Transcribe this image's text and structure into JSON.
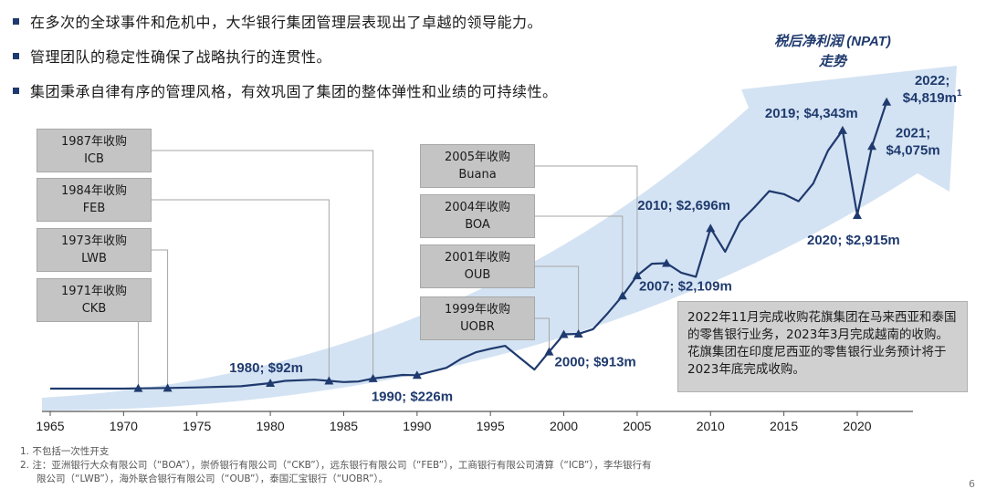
{
  "bullets": [
    "在多次的全球事件和危机中，大华银行集团管理层表现出了卓越的领导能力。",
    "管理团队的稳定性确保了战略执行的连贯性。",
    "集团秉承自律有序的管理风格，有效巩固了集团的整体弹性和业绩的可持续性。"
  ],
  "acquisitions_left": [
    {
      "line1": "1987年收购",
      "line2": "ICB",
      "year": 1987
    },
    {
      "line1": "1984年收购",
      "line2": "FEB",
      "year": 1984
    },
    {
      "line1": "1973年收购",
      "line2": "LWB",
      "year": 1973
    },
    {
      "line1": "1971年收购",
      "line2": "CKB",
      "year": 1971
    }
  ],
  "acquisitions_mid": [
    {
      "line1": "2005年收购",
      "line2": "Buana",
      "year": 2005
    },
    {
      "line1": "2004年收购",
      "line2": "BOA",
      "year": 2004
    },
    {
      "line1": "2001年收购",
      "line2": "OUB",
      "year": 2001
    },
    {
      "line1": "1999年收购",
      "line2": "UOBR",
      "year": 1999
    }
  ],
  "note": "2022年11月完成收购花旗集团在马来西亚和泰国的零售银行业务，2023年3月完成越南的收购。花旗集团在印度尼西亚的零售银行业务预计将于2023年底完成收购。",
  "footnotes": [
    "1.  不包括一次性开支",
    "2.  注：亚洲银行大众有限公司（“BOA”），崇侨银行有限公司（“CKB”），远东银行有限公司（“FEB”），工商银行有限公司清算（“ICB”），李华银行有",
    "限公司（“LWB”），海外联合银行有限公司（“OUB”），泰国汇宝银行（“UOBR”）。"
  ],
  "page_number": "6",
  "chart_data": {
    "type": "line",
    "title": "税后净利润 (NPAT) 走势",
    "title_lines": [
      "税后净利润 (NPAT)",
      "走势"
    ],
    "x_ticks": [
      1965,
      1970,
      1975,
      1980,
      1985,
      1990,
      1995,
      2000,
      2005,
      2010,
      2015,
      2020
    ],
    "xlim": [
      1965,
      2023
    ],
    "ylim": [
      0,
      5000
    ],
    "units": "S$ million",
    "series": [
      {
        "name": "NPAT",
        "x": [
          1965,
          1970,
          1971,
          1973,
          1975,
          1978,
          1980,
          1981,
          1983,
          1984,
          1985,
          1986,
          1987,
          1988,
          1989,
          1990,
          1992,
          1993,
          1994,
          1995,
          1996,
          1997,
          1998,
          1999,
          2000,
          2001,
          2002,
          2003,
          2004,
          2005,
          2006,
          2007,
          2008,
          2009,
          2010,
          2011,
          2012,
          2013,
          2014,
          2015,
          2016,
          2017,
          2018,
          2019,
          2020,
          2021,
          2022
        ],
        "y": [
          0,
          0,
          5,
          10,
          20,
          40,
          92,
          130,
          150,
          130,
          110,
          120,
          170,
          200,
          230,
          226,
          350,
          500,
          610,
          670,
          720,
          520,
          320,
          620,
          913,
          920,
          1000,
          1270,
          1560,
          1900,
          2100,
          2109,
          1950,
          1880,
          2696,
          2300,
          2800,
          3050,
          3320,
          3270,
          3150,
          3450,
          4000,
          4343,
          2915,
          4075,
          4819
        ]
      }
    ],
    "markers": [
      1971,
      1973,
      1980,
      1984,
      1987,
      1990,
      1999,
      2000,
      2001,
      2004,
      2005,
      2007,
      2010,
      2019,
      2020,
      2021,
      2022
    ],
    "annotations": [
      {
        "year": 1980,
        "text": "1980; $92m"
      },
      {
        "year": 1990,
        "text": "1990; $226m"
      },
      {
        "year": 2000,
        "text": "2000; $913m"
      },
      {
        "year": 2007,
        "text": "2007; $2,109m"
      },
      {
        "year": 2010,
        "text": "2010; $2,696m"
      },
      {
        "year": 2019,
        "text": "2019; $4,343m"
      },
      {
        "year": 2020,
        "text": "2020; $2,915m"
      },
      {
        "year": 2021,
        "text": "2021;",
        "text2": "$4,075m"
      },
      {
        "year": 2022,
        "text": "2022;",
        "text2": "$4,819m",
        "sup": "1"
      }
    ],
    "colors": {
      "line": "#1f3a6e",
      "arrow": "#cfe0f2",
      "grid_axis": "#555555",
      "connector": "#a6a6a6"
    }
  }
}
